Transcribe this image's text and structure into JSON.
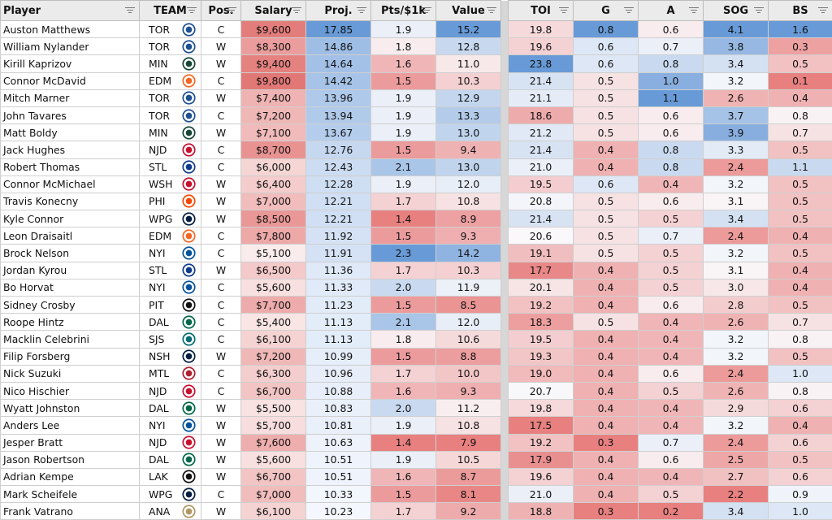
{
  "columns": {
    "player": "Player",
    "team": "TEAM",
    "pos": "Pos.",
    "salary": "Salary",
    "proj": "Proj.",
    "pts": "Pts/$1k",
    "value": "Value",
    "toi": "TOI",
    "g": "G",
    "a": "A",
    "sog": "SOG",
    "bs": "BS"
  },
  "team_colors": {
    "TOR": "#1d4f91",
    "MIN": "#154734",
    "EDM": "#f26722",
    "NJD": "#c8102e",
    "STL": "#0f3b8c",
    "WSH": "#c8102e",
    "PHI": "#f74902",
    "WPG": "#041e42",
    "NYI": "#00539b",
    "PIT": "#111111",
    "SJS": "#006d75",
    "NSH": "#041e42",
    "MTL": "#af1e2d",
    "DAL": "#006847",
    "LAK": "#111111",
    "ANA": "#b09862"
  },
  "rows": [
    {
      "player": "Auston Matthews",
      "team": "TOR",
      "pos": "C",
      "salary": "$9,600",
      "proj": "17.85",
      "pts": "1.9",
      "value": "15.2",
      "toi": "19.8",
      "g": "0.8",
      "a": "0.6",
      "sog": "4.1",
      "bs": "1.6"
    },
    {
      "player": "William Nylander",
      "team": "TOR",
      "pos": "W",
      "salary": "$8,300",
      "proj": "14.86",
      "pts": "1.8",
      "value": "12.8",
      "toi": "19.6",
      "g": "0.6",
      "a": "0.7",
      "sog": "3.8",
      "bs": "0.3"
    },
    {
      "player": "Kirill Kaprizov",
      "team": "MIN",
      "pos": "W",
      "salary": "$9,400",
      "proj": "14.64",
      "pts": "1.6",
      "value": "11.0",
      "toi": "23.8",
      "g": "0.6",
      "a": "0.8",
      "sog": "3.4",
      "bs": "0.5"
    },
    {
      "player": "Connor McDavid",
      "team": "EDM",
      "pos": "C",
      "salary": "$9,800",
      "proj": "14.42",
      "pts": "1.5",
      "value": "10.3",
      "toi": "21.4",
      "g": "0.5",
      "a": "1.0",
      "sog": "3.2",
      "bs": "0.1"
    },
    {
      "player": "Mitch Marner",
      "team": "TOR",
      "pos": "W",
      "salary": "$7,400",
      "proj": "13.96",
      "pts": "1.9",
      "value": "12.9",
      "toi": "21.1",
      "g": "0.5",
      "a": "1.1",
      "sog": "2.6",
      "bs": "0.4"
    },
    {
      "player": "John Tavares",
      "team": "TOR",
      "pos": "C",
      "salary": "$7,200",
      "proj": "13.94",
      "pts": "1.9",
      "value": "13.3",
      "toi": "18.6",
      "g": "0.5",
      "a": "0.6",
      "sog": "3.7",
      "bs": "0.8"
    },
    {
      "player": "Matt Boldy",
      "team": "MIN",
      "pos": "W",
      "salary": "$7,100",
      "proj": "13.67",
      "pts": "1.9",
      "value": "13.0",
      "toi": "21.2",
      "g": "0.5",
      "a": "0.6",
      "sog": "3.9",
      "bs": "0.7"
    },
    {
      "player": "Jack Hughes",
      "team": "NJD",
      "pos": "C",
      "salary": "$8,700",
      "proj": "12.76",
      "pts": "1.5",
      "value": "9.4",
      "toi": "21.4",
      "g": "0.4",
      "a": "0.8",
      "sog": "3.3",
      "bs": "0.5"
    },
    {
      "player": "Robert Thomas",
      "team": "STL",
      "pos": "C",
      "salary": "$6,000",
      "proj": "12.43",
      "pts": "2.1",
      "value": "13.0",
      "toi": "21.0",
      "g": "0.4",
      "a": "0.8",
      "sog": "2.4",
      "bs": "1.1"
    },
    {
      "player": "Connor McMichael",
      "team": "WSH",
      "pos": "W",
      "salary": "$6,400",
      "proj": "12.28",
      "pts": "1.9",
      "value": "12.0",
      "toi": "19.5",
      "g": "0.6",
      "a": "0.4",
      "sog": "3.2",
      "bs": "0.5"
    },
    {
      "player": "Travis Konecny",
      "team": "PHI",
      "pos": "W",
      "salary": "$7,000",
      "proj": "12.21",
      "pts": "1.7",
      "value": "10.8",
      "toi": "20.8",
      "g": "0.5",
      "a": "0.6",
      "sog": "3.1",
      "bs": "0.5"
    },
    {
      "player": "Kyle Connor",
      "team": "WPG",
      "pos": "W",
      "salary": "$8,500",
      "proj": "12.21",
      "pts": "1.4",
      "value": "8.9",
      "toi": "21.4",
      "g": "0.5",
      "a": "0.5",
      "sog": "3.4",
      "bs": "0.5"
    },
    {
      "player": "Leon Draisaitl",
      "team": "EDM",
      "pos": "C",
      "salary": "$7,800",
      "proj": "11.92",
      "pts": "1.5",
      "value": "9.3",
      "toi": "20.6",
      "g": "0.5",
      "a": "0.7",
      "sog": "2.4",
      "bs": "0.4"
    },
    {
      "player": "Brock Nelson",
      "team": "NYI",
      "pos": "C",
      "salary": "$5,100",
      "proj": "11.91",
      "pts": "2.3",
      "value": "14.2",
      "toi": "19.1",
      "g": "0.5",
      "a": "0.5",
      "sog": "3.2",
      "bs": "0.5"
    },
    {
      "player": "Jordan Kyrou",
      "team": "STL",
      "pos": "W",
      "salary": "$6,500",
      "proj": "11.36",
      "pts": "1.7",
      "value": "10.3",
      "toi": "17.7",
      "g": "0.4",
      "a": "0.5",
      "sog": "3.1",
      "bs": "0.4"
    },
    {
      "player": "Bo Horvat",
      "team": "NYI",
      "pos": "C",
      "salary": "$5,600",
      "proj": "11.33",
      "pts": "2.0",
      "value": "11.9",
      "toi": "20.1",
      "g": "0.4",
      "a": "0.5",
      "sog": "3.0",
      "bs": "0.4"
    },
    {
      "player": "Sidney Crosby",
      "team": "PIT",
      "pos": "C",
      "salary": "$7,700",
      "proj": "11.23",
      "pts": "1.5",
      "value": "8.5",
      "toi": "19.2",
      "g": "0.4",
      "a": "0.6",
      "sog": "2.8",
      "bs": "0.5"
    },
    {
      "player": "Roope Hintz",
      "team": "DAL",
      "pos": "C",
      "salary": "$5,400",
      "proj": "11.13",
      "pts": "2.1",
      "value": "12.0",
      "toi": "18.3",
      "g": "0.5",
      "a": "0.4",
      "sog": "2.6",
      "bs": "0.7"
    },
    {
      "player": "Macklin Celebrini",
      "team": "SJS",
      "pos": "C",
      "salary": "$6,100",
      "proj": "11.13",
      "pts": "1.8",
      "value": "10.6",
      "toi": "19.5",
      "g": "0.4",
      "a": "0.4",
      "sog": "3.2",
      "bs": "0.8"
    },
    {
      "player": "Filip Forsberg",
      "team": "NSH",
      "pos": "W",
      "salary": "$7,200",
      "proj": "10.99",
      "pts": "1.5",
      "value": "8.8",
      "toi": "19.3",
      "g": "0.4",
      "a": "0.4",
      "sog": "3.2",
      "bs": "0.5"
    },
    {
      "player": "Nick Suzuki",
      "team": "MTL",
      "pos": "C",
      "salary": "$6,300",
      "proj": "10.96",
      "pts": "1.7",
      "value": "10.0",
      "toi": "19.0",
      "g": "0.4",
      "a": "0.6",
      "sog": "2.4",
      "bs": "1.0"
    },
    {
      "player": "Nico Hischier",
      "team": "NJD",
      "pos": "C",
      "salary": "$6,700",
      "proj": "10.88",
      "pts": "1.6",
      "value": "9.3",
      "toi": "20.7",
      "g": "0.4",
      "a": "0.5",
      "sog": "2.6",
      "bs": "0.8"
    },
    {
      "player": "Wyatt Johnston",
      "team": "DAL",
      "pos": "W",
      "salary": "$5,500",
      "proj": "10.83",
      "pts": "2.0",
      "value": "11.2",
      "toi": "19.8",
      "g": "0.4",
      "a": "0.4",
      "sog": "2.9",
      "bs": "0.6"
    },
    {
      "player": "Anders Lee",
      "team": "NYI",
      "pos": "W",
      "salary": "$5,700",
      "proj": "10.81",
      "pts": "1.9",
      "value": "10.8",
      "toi": "17.5",
      "g": "0.4",
      "a": "0.4",
      "sog": "3.2",
      "bs": "0.4"
    },
    {
      "player": "Jesper Bratt",
      "team": "NJD",
      "pos": "W",
      "salary": "$7,600",
      "proj": "10.63",
      "pts": "1.4",
      "value": "7.9",
      "toi": "19.2",
      "g": "0.3",
      "a": "0.7",
      "sog": "2.4",
      "bs": "0.6"
    },
    {
      "player": "Jason Robertson",
      "team": "DAL",
      "pos": "W",
      "salary": "$5,600",
      "proj": "10.51",
      "pts": "1.9",
      "value": "10.5",
      "toi": "17.9",
      "g": "0.4",
      "a": "0.6",
      "sog": "2.5",
      "bs": "0.5"
    },
    {
      "player": "Adrian Kempe",
      "team": "LAK",
      "pos": "W",
      "salary": "$6,700",
      "proj": "10.51",
      "pts": "1.6",
      "value": "8.7",
      "toi": "19.6",
      "g": "0.4",
      "a": "0.4",
      "sog": "2.7",
      "bs": "0.6"
    },
    {
      "player": "Mark Scheifele",
      "team": "WPG",
      "pos": "C",
      "salary": "$7,000",
      "proj": "10.33",
      "pts": "1.5",
      "value": "8.1",
      "toi": "21.0",
      "g": "0.4",
      "a": "0.5",
      "sog": "2.2",
      "bs": "0.9"
    },
    {
      "player": "Frank Vatrano",
      "team": "ANA",
      "pos": "W",
      "salary": "$6,100",
      "proj": "10.23",
      "pts": "1.7",
      "value": "9.2",
      "toi": "18.8",
      "g": "0.3",
      "a": "0.2",
      "sog": "3.4",
      "bs": "1.0"
    }
  ]
}
